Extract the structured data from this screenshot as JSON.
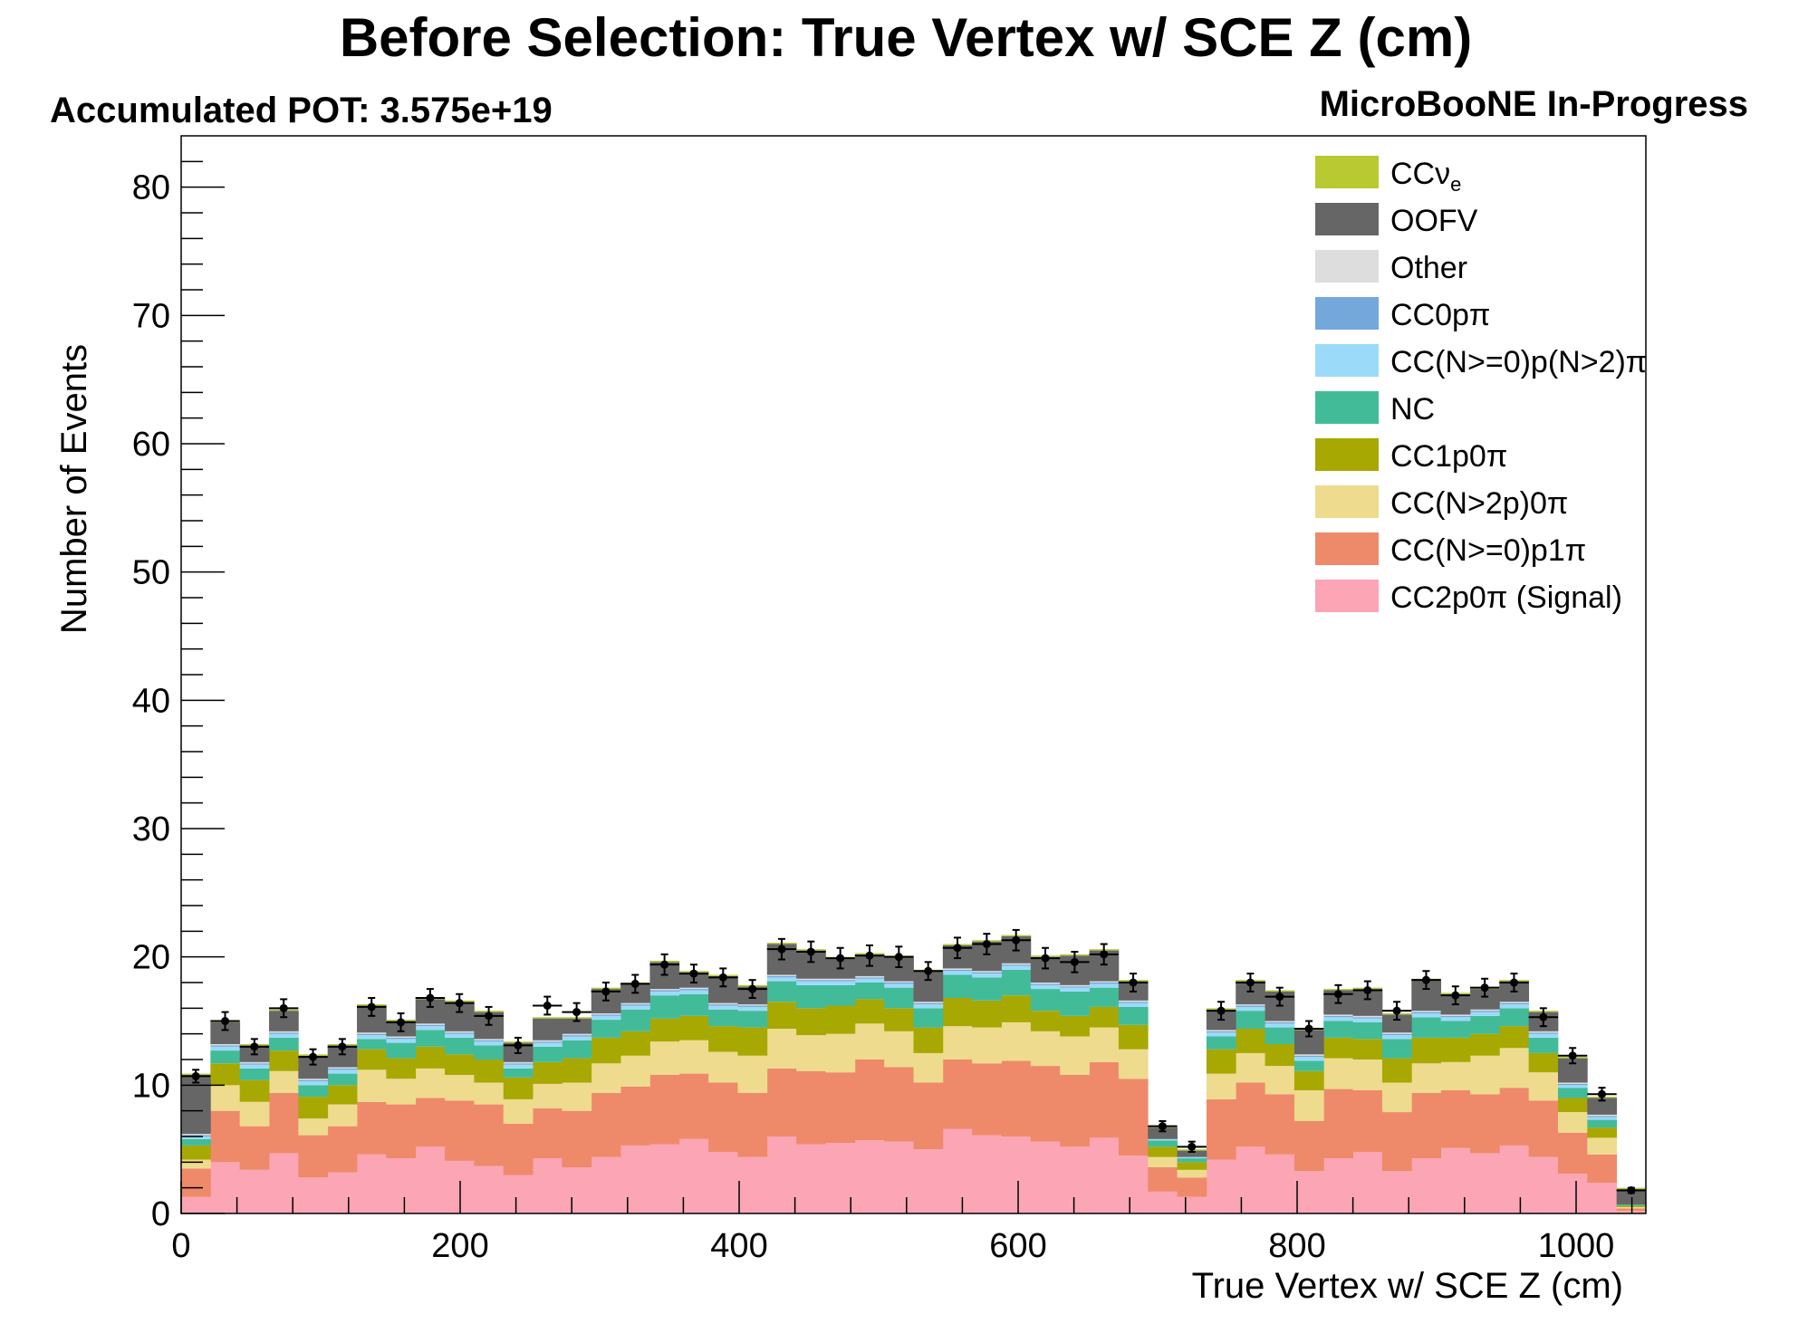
{
  "title": "Before Selection: True Vertex w/ SCE Z (cm)",
  "pot_label": "Accumulated POT: 3.575e+19",
  "watermark": "MicroBooNE In-Progress",
  "chart_data": {
    "type": "bar",
    "stacked": true,
    "xlabel": "True Vertex w/ SCE Z (cm)",
    "ylabel": "Number of Events",
    "xlim": [
      0,
      1050
    ],
    "ylim": [
      0,
      84
    ],
    "x_ticks": [
      0,
      200,
      400,
      600,
      800,
      1000
    ],
    "y_ticks": [
      0,
      10,
      20,
      30,
      40,
      50,
      60,
      70,
      80
    ],
    "legend_position": "top-right",
    "bin_edges": [
      0,
      21,
      42,
      63,
      84,
      105,
      126,
      147,
      168,
      189,
      210,
      231,
      252,
      273,
      294,
      315,
      336,
      357,
      378,
      399,
      420,
      441,
      462,
      483,
      504,
      525,
      546,
      567,
      588,
      609,
      630,
      651,
      672,
      693,
      714,
      735,
      756,
      777,
      798,
      819,
      840,
      861,
      882,
      903,
      924,
      945,
      966,
      987,
      1008,
      1029,
      1050
    ],
    "series": [
      {
        "name": "CC2p0π (Signal)",
        "color": "#FBA5B5",
        "values": [
          1.3,
          4.0,
          3.4,
          4.7,
          2.8,
          3.2,
          4.6,
          4.3,
          5.2,
          4.1,
          3.7,
          3.0,
          4.3,
          3.6,
          4.4,
          5.3,
          5.4,
          5.8,
          4.8,
          4.4,
          6.0,
          5.4,
          5.5,
          5.7,
          5.6,
          5.0,
          6.6,
          6.1,
          6.0,
          5.6,
          5.2,
          5.9,
          4.5,
          1.7,
          1.3,
          4.2,
          5.2,
          4.6,
          3.3,
          4.3,
          4.8,
          3.3,
          4.3,
          5.1,
          4.7,
          5.3,
          4.4,
          3.1,
          2.4,
          0.2
        ]
      },
      {
        "name": "CC(N>=0)p1π",
        "color": "#EE8A6A",
        "values": [
          2.2,
          4.0,
          3.4,
          4.7,
          3.3,
          3.6,
          4.1,
          4.2,
          3.8,
          4.7,
          4.8,
          4.0,
          3.9,
          4.4,
          5.0,
          4.6,
          5.4,
          5.1,
          5.4,
          5.0,
          5.3,
          5.7,
          5.5,
          6.3,
          5.8,
          5.2,
          5.4,
          5.6,
          5.9,
          5.9,
          5.6,
          5.9,
          6.0,
          1.9,
          1.5,
          4.7,
          5.0,
          4.7,
          3.9,
          5.4,
          4.8,
          4.6,
          5.1,
          4.5,
          4.6,
          4.5,
          4.4,
          3.2,
          2.2,
          0.2
        ]
      },
      {
        "name": "CC(N>2p)0π",
        "color": "#EEDB8E",
        "values": [
          0.7,
          2.0,
          1.9,
          1.7,
          1.3,
          1.7,
          2.5,
          2.0,
          2.3,
          2.0,
          1.7,
          1.9,
          1.9,
          2.2,
          2.3,
          2.4,
          2.6,
          2.6,
          2.4,
          2.9,
          3.1,
          2.8,
          3.0,
          2.8,
          2.8,
          2.3,
          2.6,
          2.8,
          3.0,
          2.7,
          3.0,
          2.7,
          2.3,
          0.8,
          0.6,
          2.0,
          2.3,
          2.2,
          2.4,
          2.4,
          2.4,
          2.3,
          2.3,
          2.2,
          3.0,
          3.1,
          2.2,
          1.6,
          1.3,
          0.1
        ]
      },
      {
        "name": "CC1p0π",
        "color": "#A8A802",
        "values": [
          1.1,
          1.7,
          1.7,
          1.6,
          1.7,
          1.5,
          1.6,
          1.6,
          1.7,
          1.6,
          1.8,
          1.7,
          1.7,
          1.9,
          2.0,
          1.9,
          1.8,
          1.9,
          2.0,
          2.2,
          2.1,
          2.1,
          2.2,
          1.9,
          1.8,
          2.0,
          2.2,
          2.1,
          2.1,
          1.6,
          1.6,
          1.6,
          1.9,
          0.8,
          0.6,
          1.9,
          1.9,
          1.7,
          1.5,
          1.6,
          1.6,
          1.9,
          2.0,
          1.9,
          1.7,
          1.7,
          1.5,
          1.1,
          0.8,
          0.1
        ]
      },
      {
        "name": "NC",
        "color": "#42BB99",
        "values": [
          0.5,
          1.0,
          0.9,
          1.0,
          0.9,
          0.9,
          0.8,
          1.2,
          1.3,
          1.3,
          1.1,
          0.7,
          1.2,
          1.4,
          1.4,
          1.7,
          1.8,
          1.7,
          1.3,
          1.3,
          1.6,
          1.8,
          1.6,
          1.3,
          1.6,
          1.5,
          1.8,
          1.8,
          2.0,
          1.7,
          1.9,
          1.5,
          1.4,
          0.5,
          0.3,
          1.0,
          1.4,
          1.3,
          0.8,
          1.3,
          1.3,
          1.5,
          1.6,
          1.3,
          1.4,
          1.4,
          1.2,
          0.8,
          0.6,
          0.1
        ]
      },
      {
        "name": "CC(N>=0)p(N>2)π",
        "color": "#9BDBF9",
        "values": [
          0.2,
          0.3,
          0.3,
          0.3,
          0.3,
          0.3,
          0.3,
          0.3,
          0.3,
          0.3,
          0.3,
          0.3,
          0.3,
          0.3,
          0.3,
          0.3,
          0.3,
          0.3,
          0.3,
          0.3,
          0.3,
          0.3,
          0.3,
          0.3,
          0.3,
          0.3,
          0.3,
          0.3,
          0.3,
          0.3,
          0.3,
          0.3,
          0.3,
          0.1,
          0.1,
          0.3,
          0.3,
          0.3,
          0.3,
          0.3,
          0.3,
          0.3,
          0.3,
          0.3,
          0.3,
          0.3,
          0.3,
          0.2,
          0.2,
          0.0
        ]
      },
      {
        "name": "CC0pπ",
        "color": "#74A8DB",
        "values": [
          0.1,
          0.1,
          0.1,
          0.1,
          0.1,
          0.1,
          0.1,
          0.1,
          0.1,
          0.1,
          0.1,
          0.1,
          0.1,
          0.1,
          0.1,
          0.1,
          0.1,
          0.1,
          0.1,
          0.1,
          0.1,
          0.1,
          0.1,
          0.1,
          0.1,
          0.1,
          0.1,
          0.1,
          0.1,
          0.1,
          0.1,
          0.1,
          0.1,
          0.0,
          0.0,
          0.1,
          0.1,
          0.1,
          0.1,
          0.1,
          0.1,
          0.1,
          0.1,
          0.1,
          0.1,
          0.1,
          0.1,
          0.1,
          0.1,
          0.0
        ]
      },
      {
        "name": "Other",
        "color": "#DDDDDD",
        "values": [
          0.1,
          0.1,
          0.1,
          0.1,
          0.1,
          0.1,
          0.1,
          0.1,
          0.1,
          0.1,
          0.1,
          0.1,
          0.1,
          0.1,
          0.1,
          0.1,
          0.1,
          0.1,
          0.1,
          0.1,
          0.1,
          0.1,
          0.1,
          0.1,
          0.1,
          0.1,
          0.1,
          0.1,
          0.1,
          0.1,
          0.1,
          0.1,
          0.1,
          0.0,
          0.0,
          0.1,
          0.1,
          0.1,
          0.1,
          0.1,
          0.1,
          0.1,
          0.1,
          0.1,
          0.1,
          0.1,
          0.1,
          0.1,
          0.1,
          0.0
        ]
      },
      {
        "name": "OOFV",
        "color": "#666666",
        "values": [
          4.6,
          1.7,
          1.3,
          1.6,
          1.8,
          1.7,
          2.1,
          1.2,
          1.9,
          2.3,
          2.1,
          1.5,
          1.7,
          1.2,
          1.9,
          1.5,
          2.1,
          1.2,
          2.1,
          1.4,
          2.4,
          2.2,
          1.6,
          1.7,
          1.9,
          2.4,
          1.8,
          2.3,
          2.1,
          2.0,
          2.3,
          2.4,
          1.5,
          0.9,
          0.5,
          1.6,
          1.8,
          2.3,
          1.9,
          1.9,
          2.1,
          1.4,
          2.4,
          1.6,
          1.6,
          1.6,
          1.5,
          1.9,
          1.3,
          1.2
        ]
      },
      {
        "name": "CCνe",
        "color": "#B8C931",
        "values": [
          0.1,
          0.1,
          0.1,
          0.1,
          0.1,
          0.1,
          0.1,
          0.1,
          0.1,
          0.1,
          0.1,
          0.1,
          0.1,
          0.1,
          0.1,
          0.1,
          0.1,
          0.1,
          0.1,
          0.1,
          0.1,
          0.1,
          0.1,
          0.1,
          0.1,
          0.1,
          0.1,
          0.1,
          0.1,
          0.1,
          0.1,
          0.1,
          0.1,
          0.1,
          0.1,
          0.1,
          0.1,
          0.1,
          0.1,
          0.1,
          0.1,
          0.1,
          0.1,
          0.1,
          0.1,
          0.1,
          0.1,
          0.1,
          0.1,
          0.1
        ]
      }
    ],
    "data_points": {
      "name": "Data",
      "values": [
        10.7,
        15.0,
        13.0,
        16.0,
        12.2,
        13.0,
        16.1,
        14.9,
        16.8,
        16.4,
        15.4,
        13.1,
        16.2,
        15.7,
        17.3,
        17.9,
        19.4,
        18.7,
        18.4,
        17.5,
        20.6,
        20.4,
        19.9,
        20.1,
        20.0,
        18.9,
        20.7,
        21.0,
        21.3,
        19.9,
        19.6,
        20.2,
        18.0,
        6.8,
        5.2,
        15.8,
        18.0,
        16.9,
        14.4,
        17.1,
        17.4,
        15.8,
        18.2,
        17.0,
        17.6,
        18.0,
        15.3,
        12.3,
        9.3,
        1.8
      ],
      "errors": [
        0.5,
        0.7,
        0.6,
        0.7,
        0.6,
        0.6,
        0.7,
        0.7,
        0.7,
        0.7,
        0.7,
        0.6,
        0.7,
        0.7,
        0.7,
        0.7,
        0.8,
        0.7,
        0.7,
        0.7,
        0.8,
        0.8,
        0.8,
        0.8,
        0.8,
        0.7,
        0.8,
        0.8,
        0.8,
        0.8,
        0.8,
        0.8,
        0.7,
        0.4,
        0.4,
        0.7,
        0.7,
        0.7,
        0.6,
        0.7,
        0.7,
        0.7,
        0.7,
        0.7,
        0.7,
        0.7,
        0.7,
        0.6,
        0.5,
        0.2
      ]
    }
  },
  "legend": [
    {
      "label": "CCν",
      "sub": "e",
      "color": "#B8C931"
    },
    {
      "label": "OOFV",
      "sub": "",
      "color": "#666666"
    },
    {
      "label": "Other",
      "sub": "",
      "color": "#DDDDDD"
    },
    {
      "label": "CC0pπ",
      "sub": "",
      "color": "#74A8DB"
    },
    {
      "label": "CC(N>=0)p(N>2)π",
      "sub": "",
      "color": "#9BDBF9"
    },
    {
      "label": "NC",
      "sub": "",
      "color": "#42BB99"
    },
    {
      "label": "CC1p0π",
      "sub": "",
      "color": "#A8A802"
    },
    {
      "label": "CC(N>2p)0π",
      "sub": "",
      "color": "#EEDB8E"
    },
    {
      "label": "CC(N>=0)p1π",
      "sub": "",
      "color": "#EE8A6A"
    },
    {
      "label": "CC2p0π (Signal)",
      "sub": "",
      "color": "#FBA5B5"
    }
  ]
}
